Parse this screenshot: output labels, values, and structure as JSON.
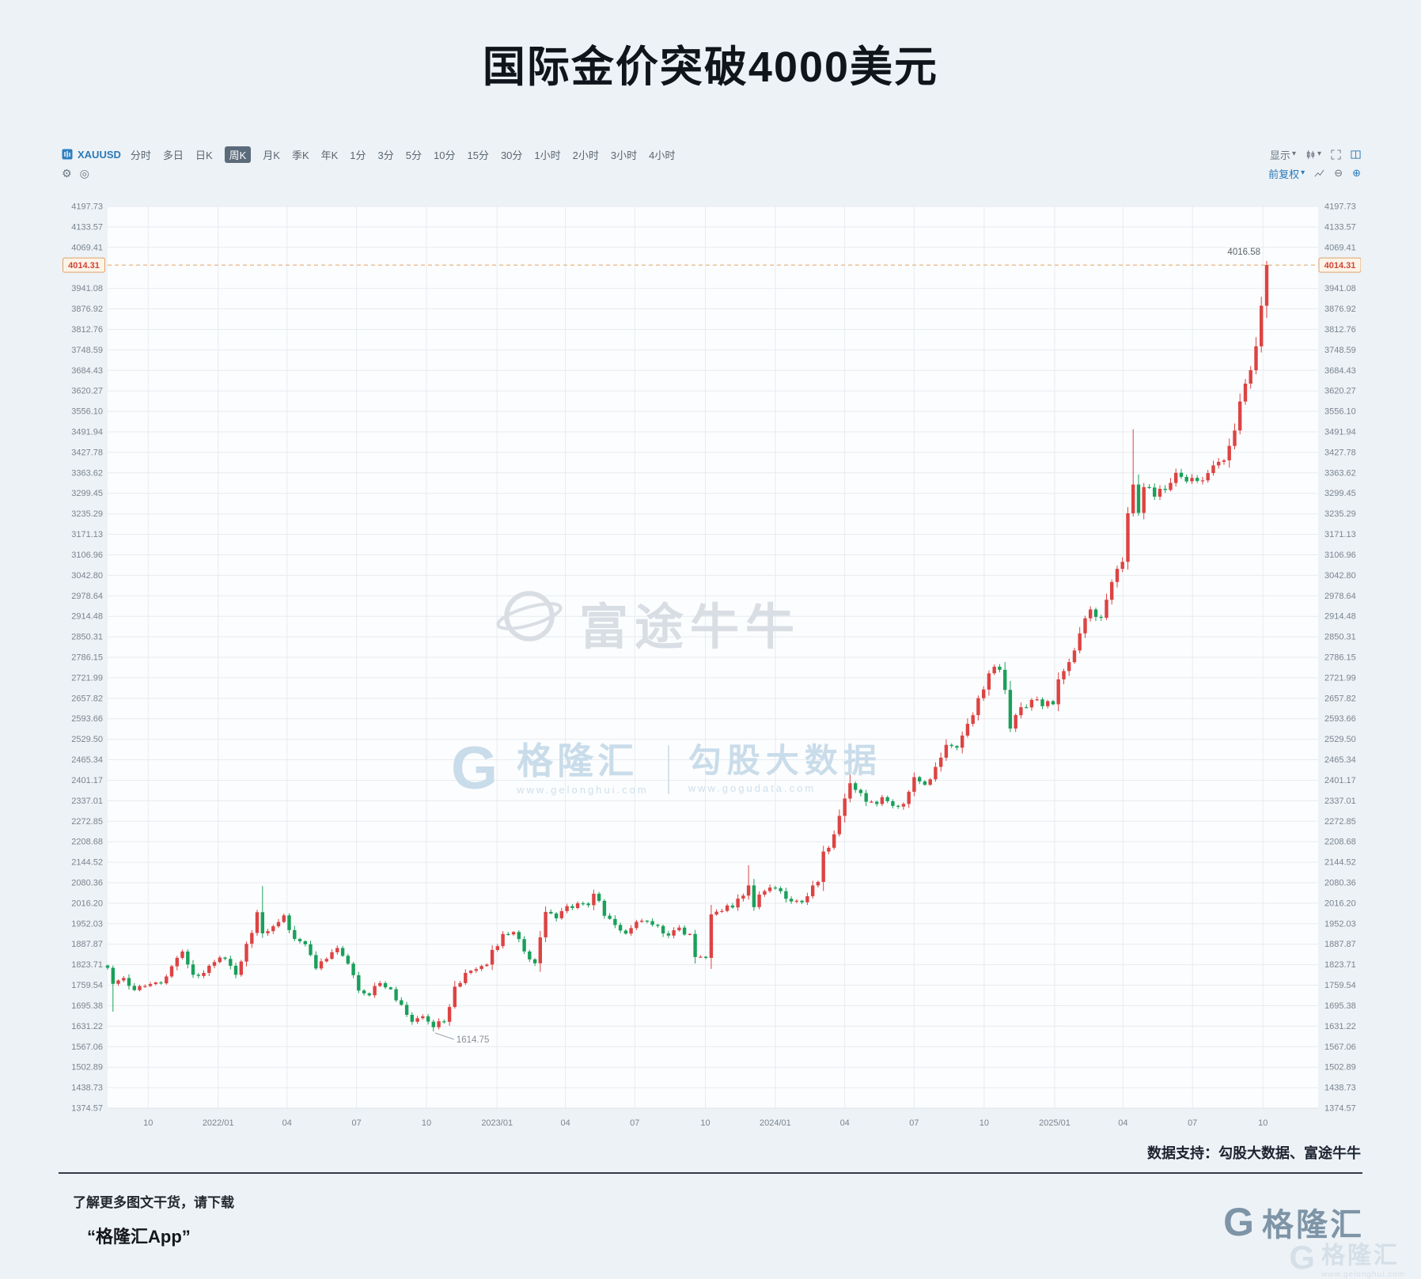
{
  "page": {
    "title": "国际金价突破4000美元",
    "data_support": "数据支持：勾股大数据、富途牛牛",
    "footer": {
      "line1": "了解更多图文干货，请下载",
      "line2": "“格隆汇App”",
      "brand": "格隆汇",
      "brand_letter": "G",
      "brand_url": "www.gelonghui.com"
    }
  },
  "toolbar": {
    "symbol": "XAUUSD",
    "periods": [
      "分时",
      "多日",
      "日K",
      "周K",
      "月K",
      "季K",
      "年K",
      "1分",
      "3分",
      "5分",
      "10分",
      "15分",
      "30分",
      "1小时",
      "2小时",
      "3小时",
      "4小时"
    ],
    "selected_period": "周K",
    "display_label": "显示",
    "adjust_label": "前复权"
  },
  "watermarks": {
    "futu": "富途牛牛",
    "gelonghui": "格隆汇",
    "gelonghui_url": "www.gelonghui.com",
    "gogudata": "勾股大数据",
    "gogudata_url": "www.gogudata.com"
  },
  "chart_data": {
    "type": "candlestick",
    "title": "国际金价突破4000美元",
    "symbol": "XAUUSD",
    "interval": "weekly",
    "ylim": [
      1374.57,
      4197.73
    ],
    "y_ticks": [
      4197.73,
      4133.57,
      4069.41,
      3941.08,
      3876.92,
      3812.76,
      3748.59,
      3684.43,
      3620.27,
      3556.1,
      3491.94,
      3427.78,
      3363.62,
      3299.45,
      3235.29,
      3171.13,
      3106.96,
      3042.8,
      2978.64,
      2914.48,
      2850.31,
      2786.15,
      2721.99,
      2657.82,
      2593.66,
      2529.5,
      2465.34,
      2401.17,
      2337.01,
      2272.85,
      2208.68,
      2144.52,
      2080.36,
      2016.2,
      1952.03,
      1887.87,
      1823.71,
      1759.54,
      1695.38,
      1631.22,
      1567.06,
      1502.89,
      1438.73,
      1374.57
    ],
    "price_line": {
      "value": 4014.31
    },
    "high_label": {
      "value": 4016.58
    },
    "low_label": {
      "value": 1614.75,
      "week": 61
    },
    "weeks_total": 218,
    "start_week": "2021-08",
    "x_ticks": [
      {
        "label": "10",
        "week": 7.6
      },
      {
        "label": "2022/01",
        "week": 20.7
      },
      {
        "label": "04",
        "week": 33.6
      },
      {
        "label": "07",
        "week": 46.6
      },
      {
        "label": "10",
        "week": 59.7
      },
      {
        "label": "2023/01",
        "week": 72.9
      },
      {
        "label": "04",
        "week": 85.7
      },
      {
        "label": "07",
        "week": 98.7
      },
      {
        "label": "10",
        "week": 111.9
      },
      {
        "label": "2024/01",
        "week": 125.0
      },
      {
        "label": "04",
        "week": 138.0
      },
      {
        "label": "07",
        "week": 151.0
      },
      {
        "label": "10",
        "week": 164.1
      },
      {
        "label": "2025/01",
        "week": 177.3
      },
      {
        "label": "04",
        "week": 190.1
      },
      {
        "label": "07",
        "week": 203.1
      },
      {
        "label": "10",
        "week": 216.3
      }
    ],
    "anchors": [
      [
        0,
        1814
      ],
      [
        1,
        1764
      ],
      [
        3,
        1782
      ],
      [
        5,
        1744
      ],
      [
        7,
        1757
      ],
      [
        9,
        1768
      ],
      [
        11,
        1787
      ],
      [
        13,
        1845
      ],
      [
        14,
        1865
      ],
      [
        16,
        1792
      ],
      [
        18,
        1798
      ],
      [
        20,
        1832
      ],
      [
        22,
        1842
      ],
      [
        24,
        1792
      ],
      [
        26,
        1889
      ],
      [
        27,
        1923
      ],
      [
        28,
        1988
      ],
      [
        29,
        1922
      ],
      [
        31,
        1944
      ],
      [
        33,
        1978
      ],
      [
        34,
        1932
      ],
      [
        36,
        1897
      ],
      [
        38,
        1854
      ],
      [
        39,
        1812
      ],
      [
        41,
        1842
      ],
      [
        43,
        1876
      ],
      [
        45,
        1827
      ],
      [
        47,
        1743
      ],
      [
        49,
        1728
      ],
      [
        51,
        1766
      ],
      [
        53,
        1747
      ],
      [
        55,
        1698
      ],
      [
        57,
        1645
      ],
      [
        59,
        1662
      ],
      [
        61,
        1628
      ],
      [
        63,
        1645
      ],
      [
        65,
        1755
      ],
      [
        67,
        1798
      ],
      [
        69,
        1810
      ],
      [
        71,
        1824
      ],
      [
        72,
        1870
      ],
      [
        74,
        1920
      ],
      [
        76,
        1926
      ],
      [
        78,
        1865
      ],
      [
        80,
        1828
      ],
      [
        82,
        1989
      ],
      [
        84,
        1969
      ],
      [
        86,
        2007
      ],
      [
        88,
        2016
      ],
      [
        90,
        2010
      ],
      [
        91,
        2046
      ],
      [
        93,
        1977
      ],
      [
        95,
        1948
      ],
      [
        97,
        1921
      ],
      [
        99,
        1958
      ],
      [
        101,
        1960
      ],
      [
        103,
        1945
      ],
      [
        105,
        1915
      ],
      [
        107,
        1940
      ],
      [
        109,
        1920
      ],
      [
        110,
        1848
      ],
      [
        112,
        1845
      ],
      [
        113,
        1981
      ],
      [
        115,
        1992
      ],
      [
        117,
        2003
      ],
      [
        119,
        2040
      ],
      [
        120,
        2072
      ],
      [
        121,
        2004
      ],
      [
        123,
        2054
      ],
      [
        125,
        2063
      ],
      [
        127,
        2030
      ],
      [
        129,
        2024
      ],
      [
        131,
        2038
      ],
      [
        133,
        2083
      ],
      [
        134,
        2178
      ],
      [
        136,
        2232
      ],
      [
        138,
        2344
      ],
      [
        139,
        2392
      ],
      [
        141,
        2361
      ],
      [
        143,
        2334
      ],
      [
        145,
        2348
      ],
      [
        147,
        2321
      ],
      [
        149,
        2327
      ],
      [
        151,
        2411
      ],
      [
        153,
        2387
      ],
      [
        155,
        2443
      ],
      [
        157,
        2512
      ],
      [
        159,
        2503
      ],
      [
        161,
        2578
      ],
      [
        163,
        2658
      ],
      [
        165,
        2736
      ],
      [
        167,
        2747
      ],
      [
        168,
        2684
      ],
      [
        169,
        2563
      ],
      [
        171,
        2630
      ],
      [
        173,
        2653
      ],
      [
        175,
        2633
      ],
      [
        177,
        2639
      ],
      [
        178,
        2717
      ],
      [
        180,
        2771
      ],
      [
        182,
        2861
      ],
      [
        184,
        2936
      ],
      [
        186,
        2910
      ],
      [
        188,
        3022
      ],
      [
        190,
        3085
      ],
      [
        191,
        3237
      ],
      [
        192,
        3327
      ],
      [
        193,
        3238
      ],
      [
        194,
        3319
      ],
      [
        196,
        3289
      ],
      [
        198,
        3310
      ],
      [
        200,
        3364
      ],
      [
        202,
        3337
      ],
      [
        204,
        3338
      ],
      [
        206,
        3363
      ],
      [
        208,
        3398
      ],
      [
        210,
        3448
      ],
      [
        212,
        3587
      ],
      [
        213,
        3643
      ],
      [
        214,
        3685
      ],
      [
        215,
        3760
      ],
      [
        216,
        3887
      ],
      [
        217,
        4014.31
      ]
    ],
    "spikes": [
      {
        "week": 1,
        "low": 1677
      },
      {
        "week": 29,
        "high": 2070
      },
      {
        "week": 61,
        "low": 1614.75
      },
      {
        "week": 120,
        "high": 2135
      },
      {
        "week": 139,
        "high": 2431
      },
      {
        "week": 192,
        "high": 3500
      },
      {
        "week": 217,
        "high": 4016.58
      }
    ],
    "colors": {
      "up": "#dd4343",
      "down": "#1aa05a",
      "grid": "#e7ecf0",
      "axis_text": "#7a858f",
      "price_line": "#e2a263",
      "price_text": "#cf4436",
      "price_box_bg": "#fdf4e8",
      "price_box_border": "#dfa269",
      "plot_bg": "#fcfdfe"
    }
  }
}
